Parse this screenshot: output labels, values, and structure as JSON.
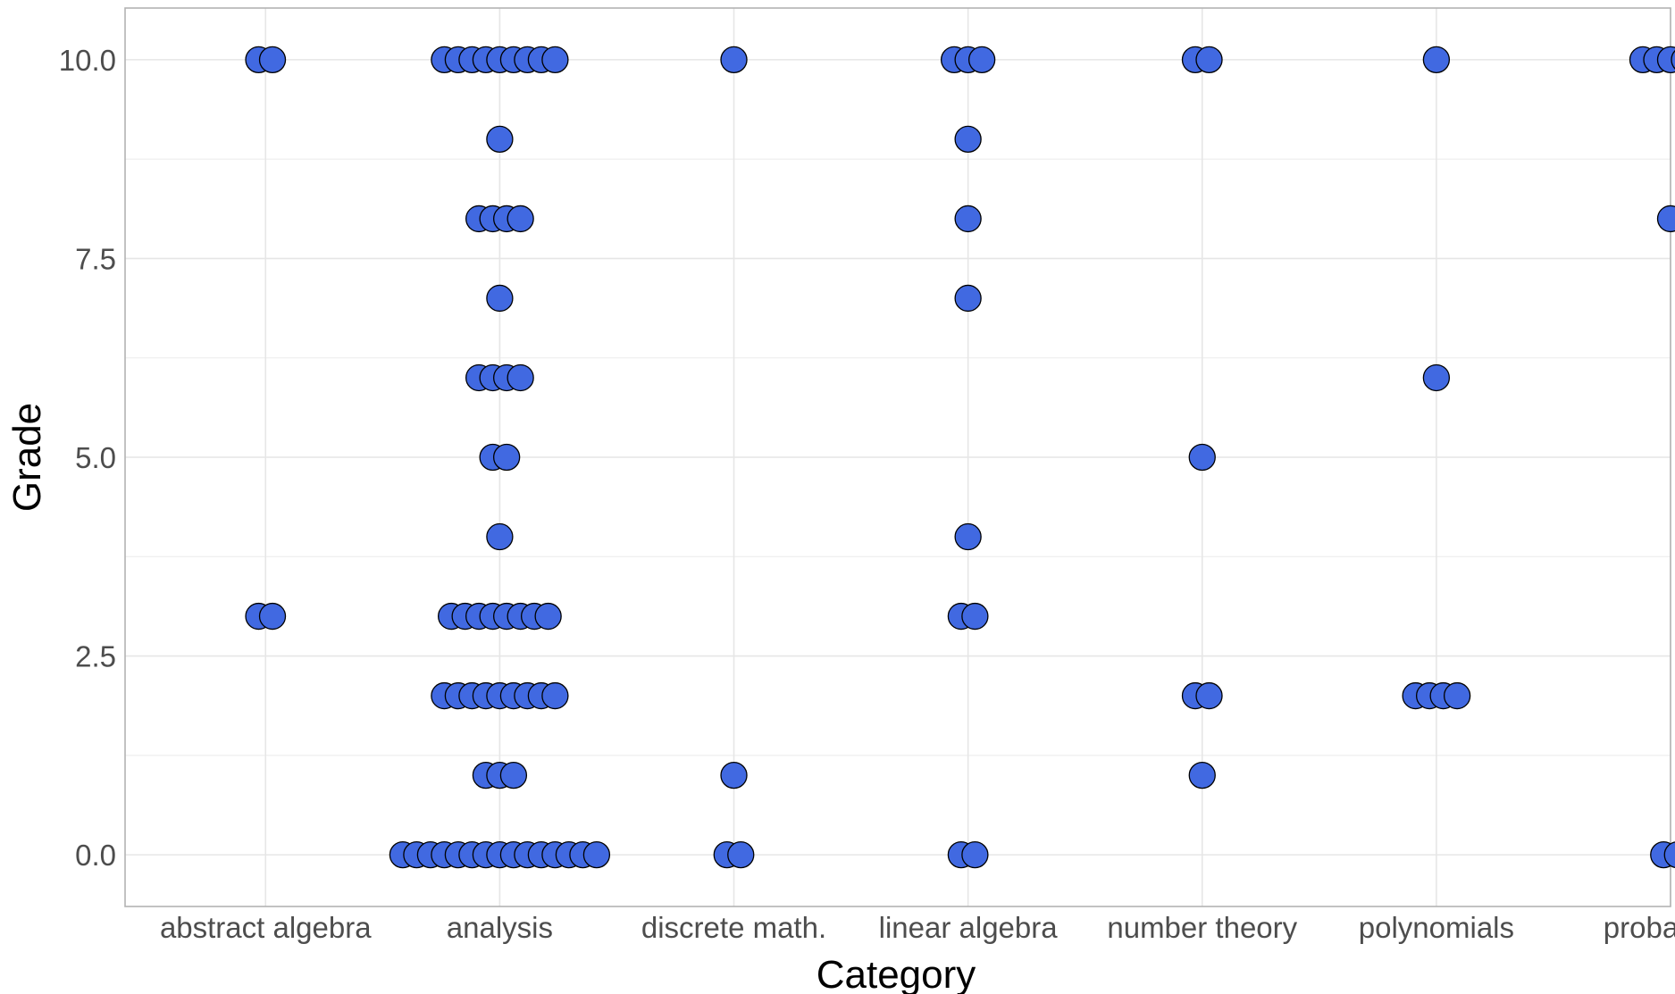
{
  "chart_data": {
    "type": "scatter",
    "subtype": "dotplot",
    "xlabel": "Category",
    "ylabel": "Grade",
    "ylim": [
      -0.65,
      10.65
    ],
    "yticks": [
      "0.0",
      "2.5",
      "5.0",
      "7.5",
      "10.0"
    ],
    "ytick_values": [
      0,
      2.5,
      5,
      7.5,
      10
    ],
    "grid": true,
    "colors": {
      "point_fill": "#4169E1",
      "point_stroke": "#000000",
      "panel_border": "#b3b3b3"
    },
    "categories": [
      "abstract algebra",
      "analysis",
      "discrete math.",
      "linear algebra",
      "number theory",
      "polynomials",
      "probability"
    ],
    "groups": [
      {
        "category": "abstract algebra",
        "points": [
          {
            "y": 10,
            "count": 2
          },
          {
            "y": 3,
            "count": 2
          }
        ]
      },
      {
        "category": "analysis",
        "points": [
          {
            "y": 10,
            "count": 9
          },
          {
            "y": 9,
            "count": 1
          },
          {
            "y": 8,
            "count": 4
          },
          {
            "y": 7,
            "count": 1
          },
          {
            "y": 6,
            "count": 4
          },
          {
            "y": 5,
            "count": 2
          },
          {
            "y": 4,
            "count": 1
          },
          {
            "y": 3,
            "count": 8
          },
          {
            "y": 2,
            "count": 9
          },
          {
            "y": 1,
            "count": 3
          },
          {
            "y": 0,
            "count": 15
          }
        ]
      },
      {
        "category": "discrete math.",
        "points": [
          {
            "y": 10,
            "count": 1
          },
          {
            "y": 1,
            "count": 1
          },
          {
            "y": 0,
            "count": 2
          }
        ]
      },
      {
        "category": "linear algebra",
        "points": [
          {
            "y": 10,
            "count": 3
          },
          {
            "y": 9,
            "count": 1
          },
          {
            "y": 8,
            "count": 1
          },
          {
            "y": 7,
            "count": 1
          },
          {
            "y": 4,
            "count": 1
          },
          {
            "y": 3,
            "count": 2
          },
          {
            "y": 0,
            "count": 2
          }
        ]
      },
      {
        "category": "number theory",
        "points": [
          {
            "y": 10,
            "count": 2
          },
          {
            "y": 5,
            "count": 1
          },
          {
            "y": 2,
            "count": 2
          },
          {
            "y": 1,
            "count": 1
          }
        ]
      },
      {
        "category": "polynomials",
        "points": [
          {
            "y": 10,
            "count": 1
          },
          {
            "y": 6,
            "count": 1
          },
          {
            "y": 2,
            "count": 4
          }
        ]
      },
      {
        "category": "probability",
        "points": [
          {
            "y": 10,
            "count": 5
          },
          {
            "y": 8,
            "count": 1
          },
          {
            "y": 0,
            "count": 2
          }
        ]
      }
    ]
  }
}
